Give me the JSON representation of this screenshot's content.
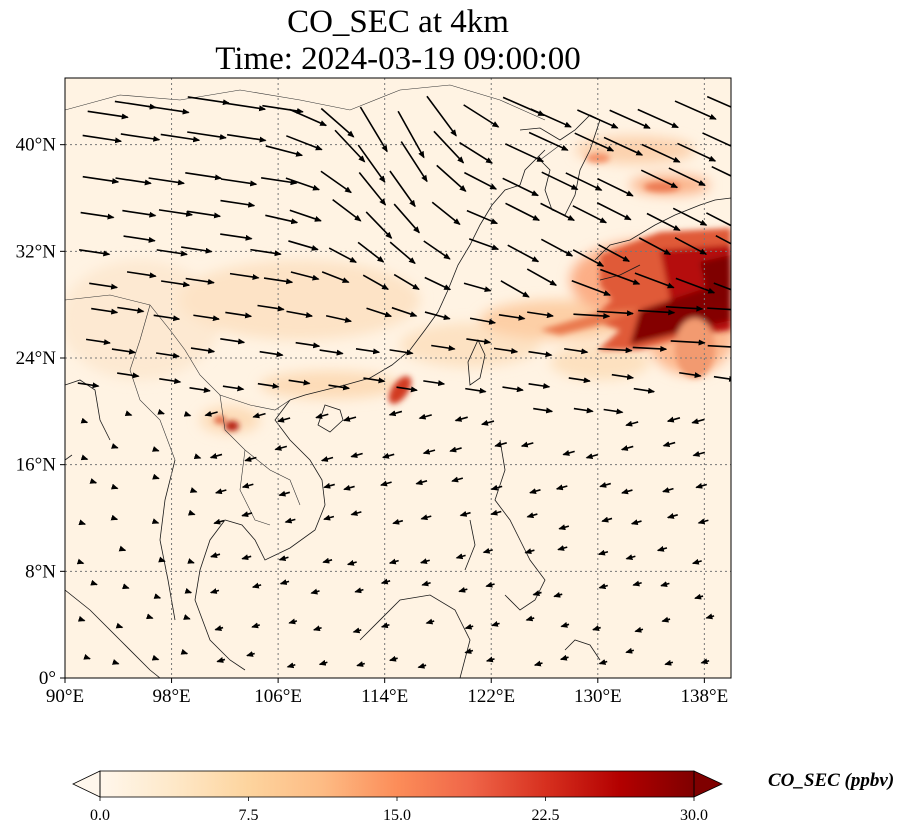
{
  "title": {
    "line1": "CO_SEC at 4km",
    "line2": "Time: 2024-03-19 09:00:00"
  },
  "map": {
    "lon_range": [
      90,
      140
    ],
    "lat_range": [
      0,
      45
    ],
    "lon_ticks": [
      {
        "value": 90,
        "label": "90°E"
      },
      {
        "value": 98,
        "label": "98°E"
      },
      {
        "value": 106,
        "label": "106°E"
      },
      {
        "value": 114,
        "label": "114°E"
      },
      {
        "value": 122,
        "label": "122°E"
      },
      {
        "value": 130,
        "label": "130°E"
      },
      {
        "value": 138,
        "label": "138°E"
      }
    ],
    "lat_ticks": [
      {
        "value": 0,
        "label": "0°"
      },
      {
        "value": 8,
        "label": "8°N"
      },
      {
        "value": 16,
        "label": "16°N"
      },
      {
        "value": 24,
        "label": "24°N"
      },
      {
        "value": 32,
        "label": "32°N"
      },
      {
        "value": 40,
        "label": "40°N"
      }
    ],
    "gridlines": true,
    "colormap": "OrRd",
    "concentration_hotspots": [
      {
        "lon": 137.0,
        "lat": 29.0,
        "value": 30
      },
      {
        "lon": 134.5,
        "lat": 27.5,
        "value": 28
      },
      {
        "lon": 132.5,
        "lat": 30.0,
        "value": 24
      },
      {
        "lon": 128.0,
        "lat": 26.5,
        "value": 18
      },
      {
        "lon": 133.5,
        "lat": 36.5,
        "value": 15
      },
      {
        "lon": 131.0,
        "lat": 39.5,
        "value": 9
      },
      {
        "lon": 116.0,
        "lat": 22.0,
        "value": 18
      },
      {
        "lon": 102.5,
        "lat": 18.8,
        "value": 22
      },
      {
        "lon": 112.0,
        "lat": 29.0,
        "value": 6
      },
      {
        "lon": 108.0,
        "lat": 21.5,
        "value": 6
      }
    ],
    "wind_vectors": "northwesterly to westerly flow north of 20°N; northeasterly flow over South China Sea"
  },
  "colorbar": {
    "label": "CO_SEC (ppbv)",
    "min": 0.0,
    "max": 30.0,
    "extend": "both",
    "ticks": [
      "0.0",
      "7.5",
      "15.0",
      "22.5",
      "30.0"
    ],
    "colors": [
      "#fff7ec",
      "#fee8c8",
      "#fdd49e",
      "#fdbb84",
      "#fc8d59",
      "#ef6548",
      "#d7301f",
      "#b30000",
      "#7f0000"
    ]
  }
}
